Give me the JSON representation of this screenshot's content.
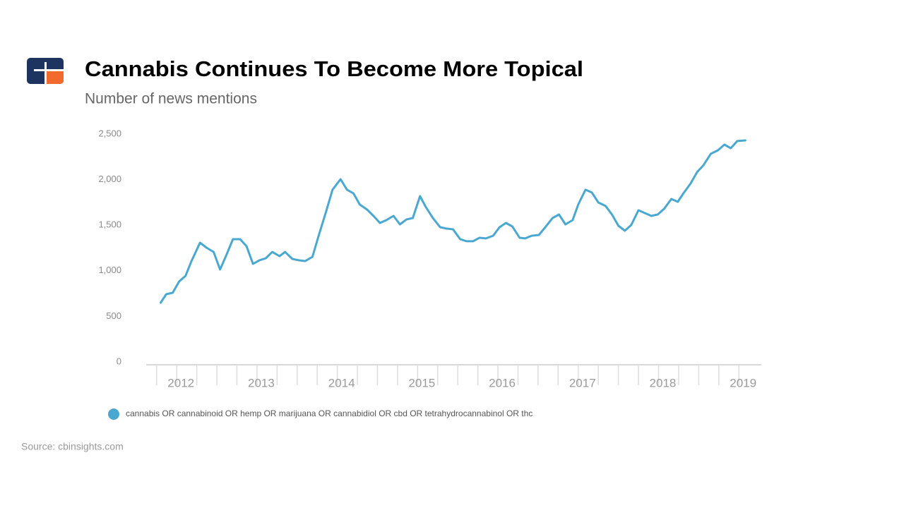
{
  "chart_data": {
    "type": "line",
    "title": "Cannabis Continues To Become More Topical",
    "subtitle": "Number of news mentions",
    "source": "Source: cbinsights.com",
    "x": [
      2011.8,
      2011.87,
      2011.95,
      2012.03,
      2012.11,
      2012.18,
      2012.29,
      2012.37,
      2012.46,
      2012.54,
      2012.62,
      2012.7,
      2012.79,
      2012.87,
      2012.95,
      2013.03,
      2013.11,
      2013.19,
      2013.28,
      2013.35,
      2013.44,
      2013.52,
      2013.6,
      2013.69,
      2013.77,
      2013.86,
      2013.94,
      2014.04,
      2014.12,
      2014.2,
      2014.28,
      2014.37,
      2014.45,
      2014.53,
      2014.61,
      2014.7,
      2014.78,
      2014.86,
      2014.94,
      2015.03,
      2015.1,
      2015.19,
      2015.28,
      2015.36,
      2015.44,
      2015.53,
      2015.61,
      2015.69,
      2015.77,
      2015.85,
      2015.94,
      2016.02,
      2016.1,
      2016.18,
      2016.27,
      2016.34,
      2016.42,
      2016.51,
      2016.59,
      2016.68,
      2016.76,
      2016.84,
      2016.93,
      2017.0,
      2017.09,
      2017.17,
      2017.25,
      2017.34,
      2017.42,
      2017.5,
      2017.58,
      2017.66,
      2017.75,
      2017.83,
      2017.91,
      2017.99,
      2018.07,
      2018.16,
      2018.24,
      2018.31,
      2018.4,
      2018.48,
      2018.56,
      2018.65,
      2018.74,
      2018.82,
      2018.9,
      2018.98,
      2019.08
    ],
    "series": [
      {
        "name": "cannabis OR cannabinoid OR hemp OR marijuana OR cannabidiol OR cbd OR tetrahydrocannabinol OR thc",
        "color": "#4aa8d0",
        "values": [
          650,
          743,
          759,
          882,
          944,
          1099,
          1308,
          1254,
          1207,
          1014,
          1176,
          1347,
          1347,
          1269,
          1076,
          1115,
          1138,
          1207,
          1161,
          1207,
          1130,
          1115,
          1107,
          1153,
          1393,
          1649,
          1889,
          2005,
          1889,
          1850,
          1726,
          1672,
          1602,
          1525,
          1556,
          1602,
          1509,
          1563,
          1579,
          1819,
          1703,
          1579,
          1478,
          1463,
          1455,
          1347,
          1324,
          1324,
          1362,
          1355,
          1385,
          1478,
          1525,
          1486,
          1362,
          1355,
          1385,
          1393,
          1478,
          1579,
          1618,
          1509,
          1556,
          1726,
          1889,
          1858,
          1749,
          1711,
          1618,
          1494,
          1440,
          1502,
          1664,
          1633,
          1602,
          1618,
          1680,
          1788,
          1757,
          1850,
          1958,
          2082,
          2159,
          2283,
          2322,
          2384,
          2345,
          2423,
          2430
        ]
      }
    ],
    "xlim": [
      2011.62,
      2019.28
    ],
    "xticks": [
      2012,
      2013,
      2014,
      2015,
      2016,
      2017,
      2018,
      2019
    ],
    "xminor_ticks": [
      2011.75,
      2012,
      2012.25,
      2012.5,
      2012.75,
      2013,
      2013.25,
      2013.5,
      2013.75,
      2014,
      2014.25,
      2014.5,
      2014.75,
      2015,
      2015.25,
      2015.5,
      2015.75,
      2016,
      2016.25,
      2016.5,
      2016.75,
      2017,
      2017.25,
      2017.5,
      2017.75,
      2018,
      2018.25,
      2018.5,
      2018.75,
      2019
    ],
    "ylim": [
      0,
      2500
    ],
    "yticks": [
      0,
      500,
      {
        "value": 1000,
        "label": "1,000"
      },
      {
        "value": 1500,
        "label": "1,500"
      },
      {
        "value": 2000,
        "label": "2,000"
      },
      {
        "value": 2500,
        "label": "2,500"
      }
    ],
    "grid": false
  }
}
